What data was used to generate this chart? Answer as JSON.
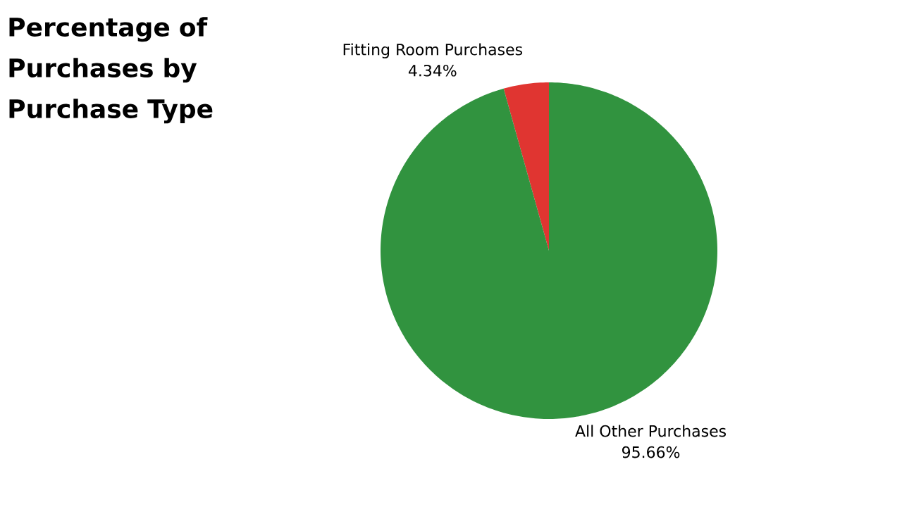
{
  "chart_data": {
    "type": "pie",
    "title": "Percentage of Purchases by Purchase Type",
    "categories": [
      "Fitting Room Purchases",
      "All Other Purchases"
    ],
    "values": [
      4.34,
      95.66
    ],
    "colors": [
      "#e03531",
      "#31933f"
    ],
    "value_labels": [
      "4.34%",
      "95.66%"
    ]
  }
}
